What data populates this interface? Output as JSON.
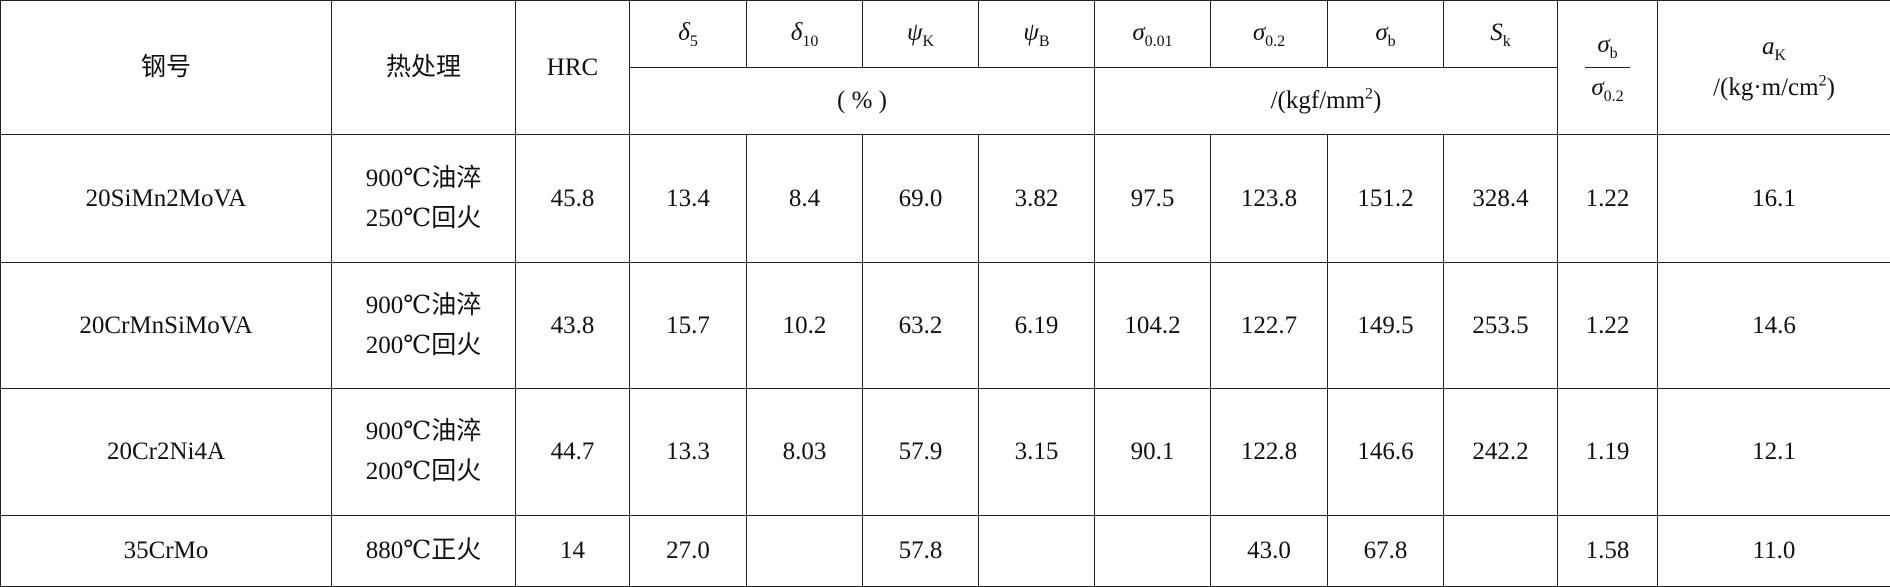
{
  "header": {
    "material": "钢号",
    "treatment": "热处理",
    "hardness": "HRC",
    "symbols": [
      {
        "base": "δ",
        "sub": "5"
      },
      {
        "base": "δ",
        "sub": "10"
      },
      {
        "base": "ψ",
        "sub": "K"
      },
      {
        "base": "ψ",
        "sub": "B"
      },
      {
        "base": "σ",
        "sub": "0.01"
      },
      {
        "base": "σ",
        "sub": "0.2"
      },
      {
        "base": "σ",
        "sub": "b"
      },
      {
        "base": "S",
        "sub": "k"
      }
    ],
    "ratio": {
      "numerator": {
        "base": "σ",
        "sub": "b"
      },
      "denominator": {
        "base": "σ",
        "sub": "0.2"
      }
    },
    "impact": {
      "symbol": {
        "base": "a",
        "sub": "K"
      },
      "unit": {
        "text": "/(kg·m/cm",
        "sup": "2",
        "tail": ")"
      }
    },
    "percent_unit": "( % )",
    "stress_unit": {
      "text": "/(kgf/mm",
      "sup": "2",
      "tail": ")"
    }
  },
  "rows": [
    {
      "material": "20SiMn2MoVA",
      "treatment": [
        "900℃油淬",
        "250℃回火"
      ],
      "values": [
        "45.8",
        "13.4",
        "8.4",
        "69.0",
        "3.82",
        "97.5",
        "123.8",
        "151.2",
        "328.4",
        "1.22",
        "16.1"
      ]
    },
    {
      "material": "20CrMnSiMoVA",
      "treatment": [
        "900℃油淬",
        "200℃回火"
      ],
      "values": [
        "43.8",
        "15.7",
        "10.2",
        "63.2",
        "6.19",
        "104.2",
        "122.7",
        "149.5",
        "253.5",
        "1.22",
        "14.6"
      ]
    },
    {
      "material": "20Cr2Ni4A",
      "treatment": [
        "900℃油淬",
        "200℃回火"
      ],
      "values": [
        "44.7",
        "13.3",
        "8.03",
        "57.9",
        "3.15",
        "90.1",
        "122.8",
        "146.6",
        "242.2",
        "1.19",
        "12.1"
      ]
    },
    {
      "material": "35CrMo",
      "treatment": [
        "880℃正火"
      ],
      "values": [
        "14",
        "27.0",
        null,
        "57.8",
        null,
        null,
        "43.0",
        "67.8",
        null,
        "1.58",
        "11.0"
      ]
    }
  ]
}
